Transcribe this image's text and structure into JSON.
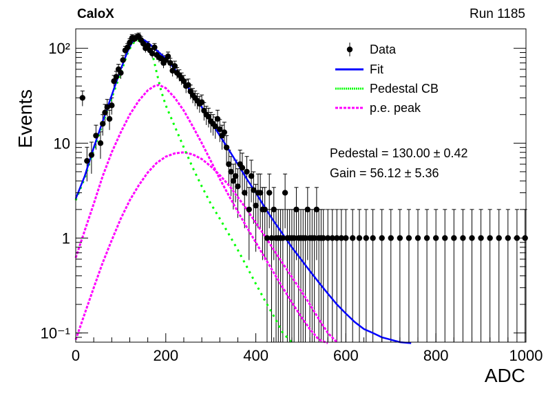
{
  "header": {
    "left": "CaloX",
    "right": "Run 1185"
  },
  "stats": {
    "pedestal": "Pedestal = 130.00 ± 0.42",
    "gain": "Gain = 56.12 ± 5.36"
  },
  "chart_data": {
    "type": "scatter",
    "title": "",
    "xlabel": "ADC",
    "ylabel": "Events",
    "xlim": [
      0,
      1000
    ],
    "ylim": [
      0.08,
      160
    ],
    "yscale": "log",
    "grid": false,
    "legend_position": "top-right",
    "x_ticks": [
      0,
      200,
      400,
      600,
      800,
      1000
    ],
    "y_ticks": [
      {
        "value": 0.1,
        "label": "10⁻¹"
      },
      {
        "value": 1,
        "label": "1"
      },
      {
        "value": 10,
        "label": "10"
      },
      {
        "value": 100,
        "label": "10²"
      }
    ],
    "legend": [
      {
        "label": "Data",
        "style": "marker",
        "color": "#000000"
      },
      {
        "label": "Fit",
        "style": "solid",
        "color": "#0000ff"
      },
      {
        "label": "Pedestal CB",
        "style": "dotted",
        "color": "#00ff00"
      },
      {
        "label": "p.e. peak",
        "style": "dashed",
        "color": "#ff00ff"
      }
    ],
    "data_points": [
      {
        "x": 15,
        "y": 30
      },
      {
        "x": 25,
        "y": 6.5
      },
      {
        "x": 35,
        "y": 7.5
      },
      {
        "x": 45,
        "y": 12
      },
      {
        "x": 55,
        "y": 10
      },
      {
        "x": 60,
        "y": 16
      },
      {
        "x": 65,
        "y": 21
      },
      {
        "x": 70,
        "y": 24
      },
      {
        "x": 75,
        "y": 18
      },
      {
        "x": 80,
        "y": 25
      },
      {
        "x": 85,
        "y": 45
      },
      {
        "x": 90,
        "y": 50
      },
      {
        "x": 95,
        "y": 60
      },
      {
        "x": 100,
        "y": 55
      },
      {
        "x": 105,
        "y": 75
      },
      {
        "x": 110,
        "y": 95
      },
      {
        "x": 115,
        "y": 102
      },
      {
        "x": 120,
        "y": 115
      },
      {
        "x": 125,
        "y": 128
      },
      {
        "x": 130,
        "y": 125
      },
      {
        "x": 135,
        "y": 130
      },
      {
        "x": 140,
        "y": 133
      },
      {
        "x": 145,
        "y": 122
      },
      {
        "x": 150,
        "y": 112
      },
      {
        "x": 155,
        "y": 100
      },
      {
        "x": 160,
        "y": 107
      },
      {
        "x": 165,
        "y": 95
      },
      {
        "x": 170,
        "y": 88
      },
      {
        "x": 175,
        "y": 102
      },
      {
        "x": 180,
        "y": 85
      },
      {
        "x": 185,
        "y": 80
      },
      {
        "x": 190,
        "y": 78
      },
      {
        "x": 195,
        "y": 70
      },
      {
        "x": 200,
        "y": 75
      },
      {
        "x": 205,
        "y": 82
      },
      {
        "x": 210,
        "y": 70
      },
      {
        "x": 215,
        "y": 58
      },
      {
        "x": 220,
        "y": 65
      },
      {
        "x": 225,
        "y": 55
      },
      {
        "x": 230,
        "y": 52
      },
      {
        "x": 235,
        "y": 48
      },
      {
        "x": 240,
        "y": 45
      },
      {
        "x": 245,
        "y": 40
      },
      {
        "x": 250,
        "y": 41
      },
      {
        "x": 255,
        "y": 35
      },
      {
        "x": 260,
        "y": 32
      },
      {
        "x": 265,
        "y": 30
      },
      {
        "x": 270,
        "y": 28
      },
      {
        "x": 275,
        "y": 26
      },
      {
        "x": 280,
        "y": 27
      },
      {
        "x": 285,
        "y": 22
      },
      {
        "x": 290,
        "y": 20
      },
      {
        "x": 295,
        "y": 19
      },
      {
        "x": 300,
        "y": 17
      },
      {
        "x": 305,
        "y": 16
      },
      {
        "x": 310,
        "y": 15
      },
      {
        "x": 315,
        "y": 18
      },
      {
        "x": 320,
        "y": 14
      },
      {
        "x": 325,
        "y": 12
      },
      {
        "x": 330,
        "y": 13
      },
      {
        "x": 335,
        "y": 9
      },
      {
        "x": 340,
        "y": 6
      },
      {
        "x": 345,
        "y": 5
      },
      {
        "x": 350,
        "y": 4
      },
      {
        "x": 355,
        "y": 4.5
      },
      {
        "x": 360,
        "y": 3.5
      },
      {
        "x": 365,
        "y": 6
      },
      {
        "x": 370,
        "y": 5.5
      },
      {
        "x": 375,
        "y": 3
      },
      {
        "x": 380,
        "y": 5
      },
      {
        "x": 385,
        "y": 2
      },
      {
        "x": 390,
        "y": 4.5
      },
      {
        "x": 395,
        "y": 3.2
      },
      {
        "x": 400,
        "y": 2.2
      },
      {
        "x": 405,
        "y": 3
      },
      {
        "x": 410,
        "y": 3
      },
      {
        "x": 415,
        "y": 2
      },
      {
        "x": 420,
        "y": 2
      },
      {
        "x": 425,
        "y": 1
      },
      {
        "x": 430,
        "y": 3
      },
      {
        "x": 435,
        "y": 1
      },
      {
        "x": 440,
        "y": 2
      },
      {
        "x": 445,
        "y": 1
      },
      {
        "x": 450,
        "y": 1
      },
      {
        "x": 455,
        "y": 1
      },
      {
        "x": 460,
        "y": 1
      },
      {
        "x": 465,
        "y": 3
      },
      {
        "x": 470,
        "y": 1
      },
      {
        "x": 475,
        "y": 1
      },
      {
        "x": 480,
        "y": 1
      },
      {
        "x": 485,
        "y": 1
      },
      {
        "x": 490,
        "y": 2
      },
      {
        "x": 495,
        "y": 1
      },
      {
        "x": 500,
        "y": 1
      },
      {
        "x": 505,
        "y": 1
      },
      {
        "x": 510,
        "y": 1
      },
      {
        "x": 515,
        "y": 2
      },
      {
        "x": 520,
        "y": 1
      },
      {
        "x": 525,
        "y": 1
      },
      {
        "x": 530,
        "y": 1
      },
      {
        "x": 535,
        "y": 2
      },
      {
        "x": 540,
        "y": 1
      },
      {
        "x": 545,
        "y": 1
      },
      {
        "x": 550,
        "y": 1
      },
      {
        "x": 560,
        "y": 1
      },
      {
        "x": 570,
        "y": 1
      },
      {
        "x": 580,
        "y": 1
      },
      {
        "x": 590,
        "y": 1
      },
      {
        "x": 600,
        "y": 1
      },
      {
        "x": 615,
        "y": 1
      },
      {
        "x": 630,
        "y": 1
      },
      {
        "x": 645,
        "y": 1
      },
      {
        "x": 660,
        "y": 1
      },
      {
        "x": 680,
        "y": 1
      },
      {
        "x": 700,
        "y": 1
      },
      {
        "x": 720,
        "y": 1
      },
      {
        "x": 740,
        "y": 1
      },
      {
        "x": 760,
        "y": 1
      },
      {
        "x": 780,
        "y": 1
      },
      {
        "x": 800,
        "y": 1
      },
      {
        "x": 820,
        "y": 1
      },
      {
        "x": 840,
        "y": 1
      },
      {
        "x": 860,
        "y": 1
      },
      {
        "x": 880,
        "y": 1
      },
      {
        "x": 900,
        "y": 1
      },
      {
        "x": 920,
        "y": 1
      },
      {
        "x": 940,
        "y": 1
      },
      {
        "x": 960,
        "y": 1
      },
      {
        "x": 980,
        "y": 1
      },
      {
        "x": 998,
        "y": 1
      }
    ],
    "fit_curve": [
      [
        0,
        2.6
      ],
      [
        20,
        4.5
      ],
      [
        40,
        9
      ],
      [
        60,
        17
      ],
      [
        80,
        32
      ],
      [
        100,
        60
      ],
      [
        115,
        92
      ],
      [
        125,
        115
      ],
      [
        135,
        130
      ],
      [
        145,
        128
      ],
      [
        160,
        115
      ],
      [
        180,
        95
      ],
      [
        200,
        78
      ],
      [
        220,
        60
      ],
      [
        240,
        45
      ],
      [
        260,
        33
      ],
      [
        280,
        24
      ],
      [
        300,
        17
      ],
      [
        320,
        12
      ],
      [
        340,
        8.5
      ],
      [
        360,
        6
      ],
      [
        380,
        4.2
      ],
      [
        400,
        3
      ],
      [
        420,
        2.1
      ],
      [
        440,
        1.5
      ],
      [
        460,
        1.1
      ],
      [
        480,
        0.8
      ],
      [
        500,
        0.6
      ],
      [
        520,
        0.45
      ],
      [
        540,
        0.34
      ],
      [
        560,
        0.26
      ],
      [
        580,
        0.2
      ],
      [
        600,
        0.16
      ],
      [
        620,
        0.13
      ],
      [
        640,
        0.11
      ],
      [
        660,
        0.1
      ],
      [
        680,
        0.09
      ],
      [
        700,
        0.085
      ],
      [
        720,
        0.08
      ],
      [
        745,
        0.078
      ]
    ],
    "pedestal_curve": [
      [
        0,
        2.5
      ],
      [
        20,
        4.3
      ],
      [
        40,
        8.5
      ],
      [
        60,
        16
      ],
      [
        80,
        30
      ],
      [
        100,
        55
      ],
      [
        115,
        88
      ],
      [
        125,
        110
      ],
      [
        135,
        122
      ],
      [
        145,
        118
      ],
      [
        160,
        100
      ],
      [
        170,
        88
      ],
      [
        180,
        55
      ],
      [
        190,
        35
      ],
      [
        200,
        25
      ],
      [
        220,
        15
      ],
      [
        240,
        9
      ],
      [
        260,
        5.5
      ],
      [
        280,
        3.5
      ],
      [
        300,
        2.3
      ],
      [
        320,
        1.6
      ],
      [
        340,
        1.1
      ],
      [
        360,
        0.75
      ],
      [
        380,
        0.5
      ],
      [
        400,
        0.33
      ],
      [
        420,
        0.22
      ],
      [
        440,
        0.15
      ],
      [
        460,
        0.1
      ],
      [
        480,
        0.08
      ]
    ],
    "pe_peak_curves": [
      [
        [
          0,
          0.62
        ],
        [
          20,
          1.2
        ],
        [
          40,
          2.3
        ],
        [
          60,
          4.5
        ],
        [
          80,
          8
        ],
        [
          100,
          13
        ],
        [
          120,
          20
        ],
        [
          140,
          28
        ],
        [
          160,
          36
        ],
        [
          175,
          40
        ],
        [
          185,
          41
        ],
        [
          200,
          38
        ],
        [
          220,
          30
        ],
        [
          240,
          22
        ],
        [
          260,
          15
        ],
        [
          280,
          10
        ],
        [
          300,
          6.5
        ],
        [
          320,
          4.2
        ],
        [
          340,
          2.8
        ],
        [
          360,
          1.9
        ],
        [
          380,
          1.3
        ],
        [
          400,
          0.9
        ],
        [
          420,
          0.62
        ],
        [
          440,
          0.43
        ],
        [
          460,
          0.3
        ],
        [
          480,
          0.21
        ],
        [
          500,
          0.15
        ],
        [
          520,
          0.11
        ],
        [
          540,
          0.085
        ],
        [
          560,
          0.078
        ]
      ],
      [
        [
          0,
          0.085
        ],
        [
          20,
          0.16
        ],
        [
          40,
          0.3
        ],
        [
          60,
          0.55
        ],
        [
          80,
          0.95
        ],
        [
          100,
          1.6
        ],
        [
          120,
          2.5
        ],
        [
          140,
          3.6
        ],
        [
          160,
          4.9
        ],
        [
          180,
          6.2
        ],
        [
          200,
          7.2
        ],
        [
          220,
          7.8
        ],
        [
          240,
          8
        ],
        [
          260,
          7.6
        ],
        [
          280,
          6.8
        ],
        [
          300,
          5.7
        ],
        [
          320,
          4.6
        ],
        [
          340,
          3.6
        ],
        [
          360,
          2.7
        ],
        [
          380,
          2
        ],
        [
          400,
          1.45
        ],
        [
          420,
          1.05
        ],
        [
          440,
          0.75
        ],
        [
          460,
          0.54
        ],
        [
          480,
          0.39
        ],
        [
          500,
          0.28
        ],
        [
          520,
          0.2
        ],
        [
          540,
          0.14
        ],
        [
          560,
          0.1
        ],
        [
          580,
          0.08
        ]
      ]
    ]
  }
}
